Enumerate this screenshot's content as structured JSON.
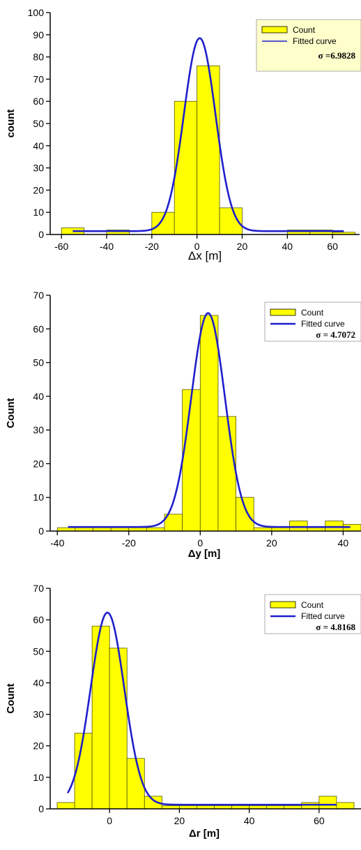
{
  "colors": {
    "bar_fill": "#ffff00",
    "bar_stroke": "#555500",
    "curve": "#1f1fcc",
    "legend_bg_1": "#ffffcc",
    "axis": "#000000"
  },
  "chart_data": [
    {
      "type": "bar",
      "xlabel": "Δx [m]",
      "ylabel": "count",
      "xlim": [
        -65,
        72
      ],
      "ylim": [
        0,
        100
      ],
      "xticks": [
        -60,
        -40,
        -20,
        0,
        20,
        40,
        60
      ],
      "yticks": [
        0,
        10,
        20,
        30,
        40,
        50,
        60,
        70,
        80,
        90,
        100
      ],
      "bin_width": 10,
      "bins": [
        {
          "x0": -60,
          "count": 3
        },
        {
          "x0": -40,
          "count": 2
        },
        {
          "x0": -20,
          "count": 10
        },
        {
          "x0": -10,
          "count": 60
        },
        {
          "x0": 0,
          "count": 76
        },
        {
          "x0": 10,
          "count": 12
        },
        {
          "x0": 40,
          "count": 2
        },
        {
          "x0": 50,
          "count": 2
        },
        {
          "x0": 60,
          "count": 1
        }
      ],
      "fit": {
        "type": "gaussian",
        "mu": 1.2,
        "sigma": 6.9828,
        "amplitude": 87,
        "offset": 1.5,
        "x_range": [
          -55,
          65
        ]
      },
      "legend": {
        "count_label": "Count",
        "fit_label": "Fitted curve",
        "sigma_label": "σ =6.9828",
        "position": "top-right"
      }
    },
    {
      "type": "bar",
      "xlabel": "Δy [m]",
      "ylabel": "Count",
      "xlim": [
        -42,
        45
      ],
      "ylim": [
        0,
        70
      ],
      "xticks": [
        -40,
        -20,
        0,
        20,
        40
      ],
      "yticks": [
        0,
        10,
        20,
        30,
        40,
        50,
        60,
        70
      ],
      "bin_width": 5,
      "bins": [
        {
          "x0": -40,
          "count": 1
        },
        {
          "x0": -35,
          "count": 1
        },
        {
          "x0": -30,
          "count": 1
        },
        {
          "x0": -25,
          "count": 1
        },
        {
          "x0": -20,
          "count": 1
        },
        {
          "x0": -15,
          "count": 1
        },
        {
          "x0": -10,
          "count": 5
        },
        {
          "x0": -5,
          "count": 42
        },
        {
          "x0": 0,
          "count": 64
        },
        {
          "x0": 5,
          "count": 34
        },
        {
          "x0": 10,
          "count": 10
        },
        {
          "x0": 15,
          "count": 1
        },
        {
          "x0": 20,
          "count": 1
        },
        {
          "x0": 25,
          "count": 3
        },
        {
          "x0": 30,
          "count": 1
        },
        {
          "x0": 35,
          "count": 3
        },
        {
          "x0": 40,
          "count": 2
        }
      ],
      "fit": {
        "type": "gaussian",
        "mu": 2.2,
        "sigma": 4.7072,
        "amplitude": 63.5,
        "offset": 1.2,
        "x_range": [
          -37,
          42
        ]
      },
      "legend": {
        "count_label": "Count",
        "fit_label": "Fitted curve",
        "sigma_label": "σ = 4.7072",
        "position": "top-right"
      }
    },
    {
      "type": "bar",
      "xlabel": "Δr [m]",
      "ylabel": "Count",
      "xlim": [
        -17,
        72
      ],
      "ylim": [
        0,
        70
      ],
      "xticks": [
        0,
        20,
        40,
        60
      ],
      "yticks": [
        0,
        10,
        20,
        30,
        40,
        50,
        60,
        70
      ],
      "bin_width": 5,
      "bins": [
        {
          "x0": -15,
          "count": 2
        },
        {
          "x0": -10,
          "count": 24
        },
        {
          "x0": -5,
          "count": 58
        },
        {
          "x0": 0,
          "count": 51
        },
        {
          "x0": 5,
          "count": 16
        },
        {
          "x0": 10,
          "count": 4
        },
        {
          "x0": 15,
          "count": 1
        },
        {
          "x0": 20,
          "count": 1
        },
        {
          "x0": 25,
          "count": 1
        },
        {
          "x0": 30,
          "count": 1
        },
        {
          "x0": 35,
          "count": 1
        },
        {
          "x0": 40,
          "count": 1
        },
        {
          "x0": 45,
          "count": 1
        },
        {
          "x0": 50,
          "count": 1
        },
        {
          "x0": 55,
          "count": 2
        },
        {
          "x0": 60,
          "count": 4
        },
        {
          "x0": 65,
          "count": 2
        }
      ],
      "fit": {
        "type": "gaussian",
        "mu": -0.6,
        "sigma": 4.8168,
        "amplitude": 61,
        "offset": 1.3,
        "x_range": [
          -12,
          65
        ]
      },
      "legend": {
        "count_label": "Count",
        "fit_label": "Fitted curve",
        "sigma_label": "σ = 4.8168",
        "position": "top-right"
      }
    }
  ]
}
